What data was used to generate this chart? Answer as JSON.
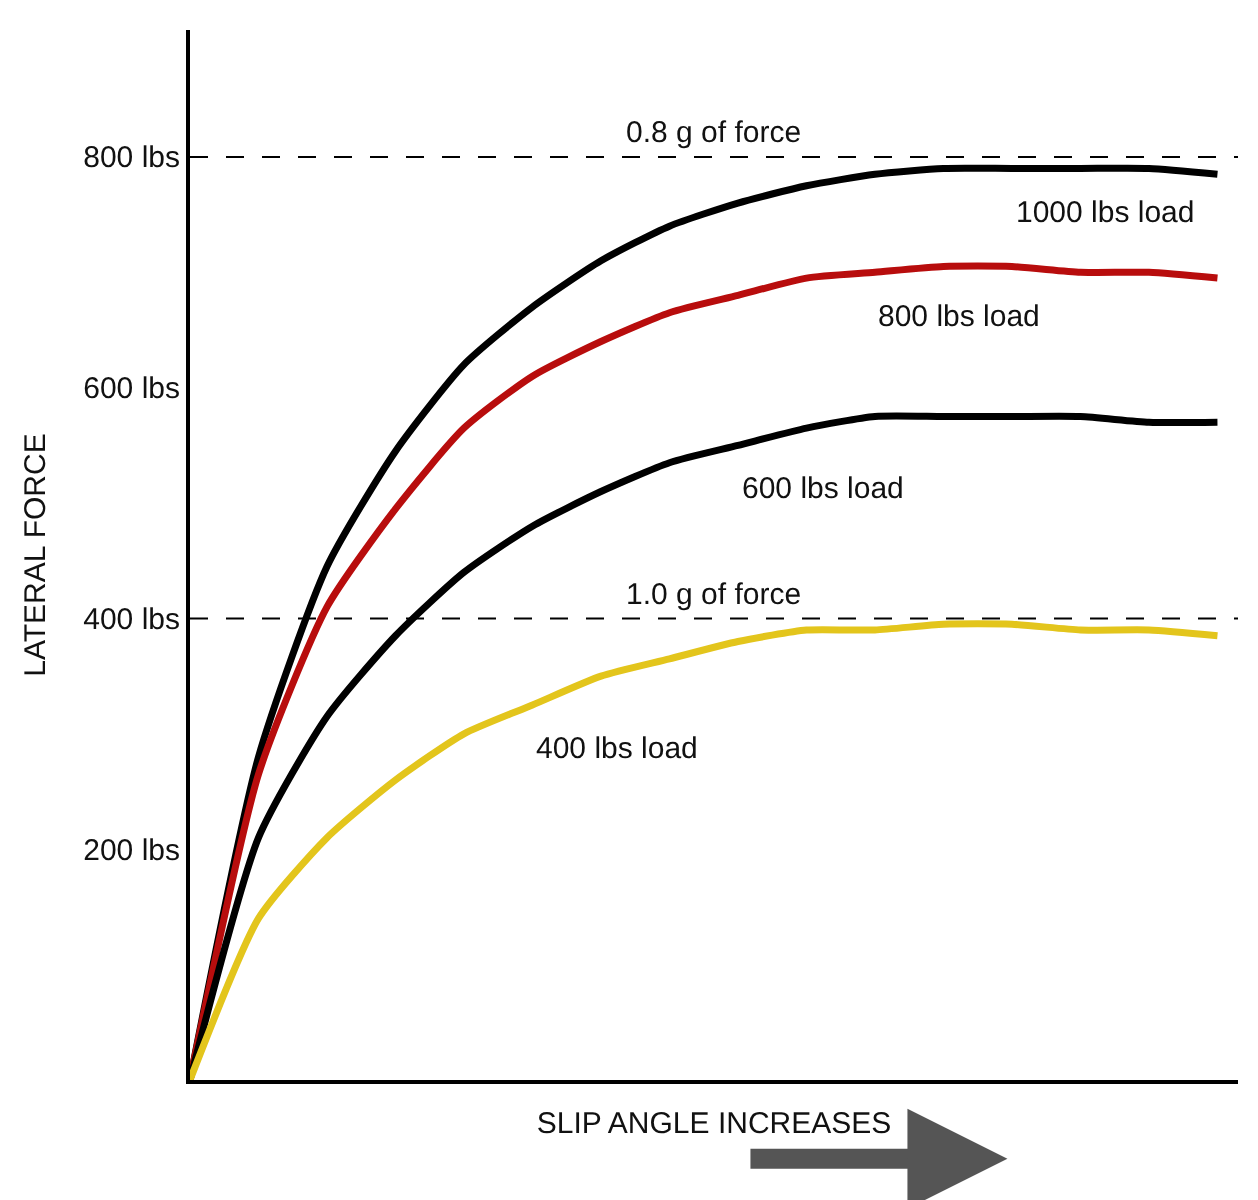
{
  "chart_data": {
    "type": "line",
    "xlabel": "SLIP ANGLE INCREASES",
    "ylabel": "LATERAL FORCE",
    "categories": [
      null,
      null,
      null,
      null,
      null,
      null,
      null,
      null,
      null,
      null,
      null,
      null,
      null,
      null,
      null,
      null
    ],
    "series": [
      {
        "name": "1000 lbs load",
        "color": "#000000",
        "values": [
          0,
          280,
          445,
          545,
          620,
          670,
          710,
          740,
          760,
          775,
          785,
          790,
          790,
          790,
          790,
          785
        ]
      },
      {
        "name": "800 lbs load",
        "color": "#b80d0d",
        "values": [
          0,
          265,
          410,
          495,
          565,
          610,
          640,
          665,
          680,
          695,
          700,
          705,
          705,
          700,
          700,
          695
        ]
      },
      {
        "name": "600 lbs load",
        "color": "#000000",
        "values": [
          0,
          210,
          315,
          385,
          440,
          480,
          510,
          535,
          550,
          565,
          575,
          575,
          575,
          575,
          570,
          570
        ]
      },
      {
        "name": "400 lbs load",
        "color": "#e3c51c",
        "values": [
          0,
          140,
          210,
          260,
          300,
          325,
          350,
          365,
          380,
          390,
          390,
          395,
          395,
          390,
          390,
          385
        ]
      }
    ],
    "ylim": [
      0,
      910
    ],
    "yticks": [
      {
        "value": 200,
        "label": "200 lbs"
      },
      {
        "value": 400,
        "label": "400 lbs"
      },
      {
        "value": 600,
        "label": "600 lbs"
      },
      {
        "value": 800,
        "label": "800 lbs"
      }
    ],
    "ref_lines": [
      {
        "axis": "y",
        "value": 800,
        "label": "0.8 g of force",
        "color": "#000000",
        "line_style": "dashed"
      },
      {
        "axis": "y",
        "value": 400,
        "label": "1.0 g of force",
        "color": "#000000",
        "line_style": "dashed"
      }
    ],
    "legend": false,
    "marker": "none",
    "line_style": "solid",
    "tick_labels": "y"
  }
}
